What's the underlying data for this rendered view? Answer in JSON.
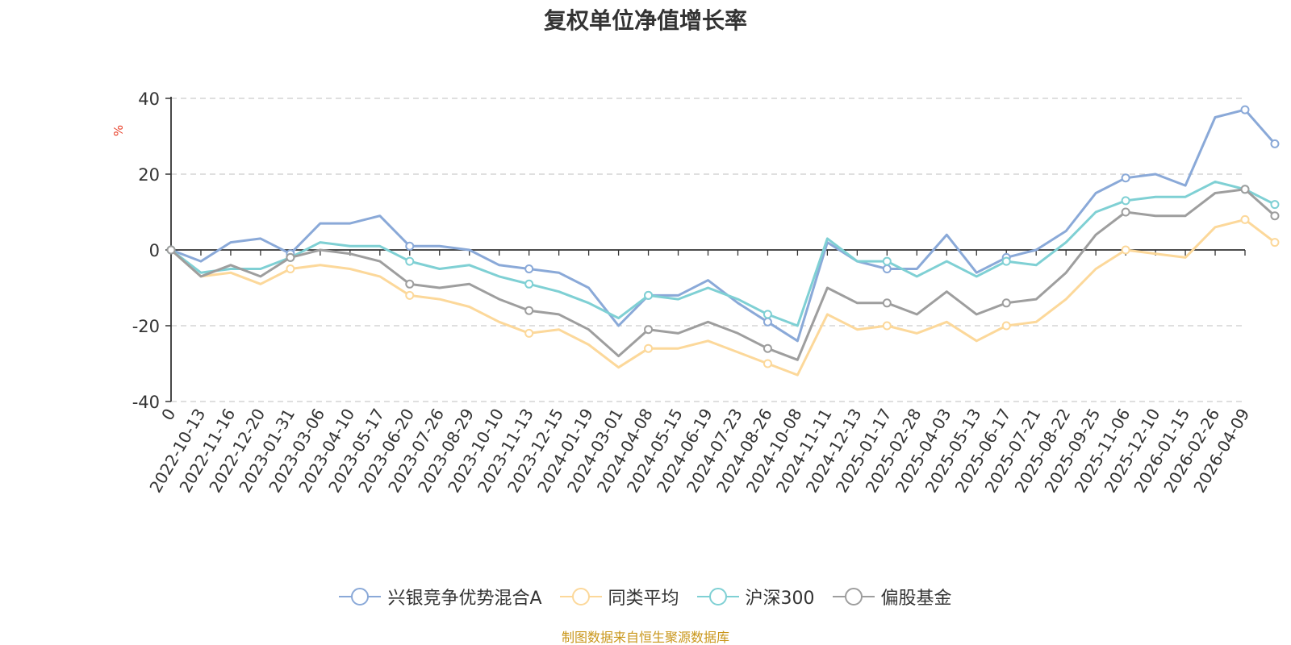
{
  "chart_data": {
    "type": "line",
    "title": "复权单位净值增长率",
    "ylabel": "%",
    "ylim": [
      -40,
      40
    ],
    "yticks": [
      -40,
      -20,
      0,
      20,
      40
    ],
    "grid": true,
    "legend_position": "bottom",
    "x_tick_labels": [
      "0",
      "2022-10-13",
      "2022-11-16",
      "2022-12-20",
      "2023-01-31",
      "2023-03-06",
      "2023-04-10",
      "2023-05-17",
      "2023-06-20",
      "2023-07-26",
      "2023-08-29",
      "2023-10-10",
      "2023-11-13",
      "2023-12-15",
      "2024-01-19",
      "2024-03-01",
      "2024-04-08",
      "2024-05-15",
      "2024-06-19",
      "2024-07-23",
      "2024-08-26",
      "2024-10-08",
      "2024-11-11",
      "2024-12-13",
      "2025-01-17",
      "2025-02-28",
      "2025-04-03",
      "2025-05-13",
      "2025-06-17",
      "2025-07-21",
      "2025-08-22",
      "2025-09-25",
      "2025-11-06",
      "2025-12-10",
      "2026-01-15",
      "2026-02-26",
      "2026-04-09"
    ],
    "series": [
      {
        "name": "兴银竞争优势混合A",
        "color": "#8aa9d8",
        "values": [
          0,
          -3,
          2,
          3,
          -1,
          7,
          7,
          9,
          1,
          1,
          0,
          -4,
          -5,
          -6,
          -10,
          -20,
          -12,
          -12,
          -8,
          -14,
          -19,
          -24,
          2,
          -3,
          -5,
          -5,
          4,
          -6,
          -2,
          0,
          5,
          15,
          19,
          20,
          17,
          35,
          37,
          28
        ]
      },
      {
        "name": "同类平均",
        "color": "#fcd89a",
        "values": [
          0,
          -7,
          -6,
          -9,
          -5,
          -4,
          -5,
          -7,
          -12,
          -13,
          -15,
          -19,
          -22,
          -21,
          -25,
          -31,
          -26,
          -26,
          -24,
          -27,
          -30,
          -33,
          -17,
          -21,
          -20,
          -22,
          -19,
          -24,
          -20,
          -19,
          -13,
          -5,
          0,
          -1,
          -2,
          6,
          8,
          2
        ]
      },
      {
        "name": "沪深300",
        "color": "#7fd0d4",
        "values": [
          0,
          -6,
          -5,
          -5,
          -2,
          2,
          1,
          1,
          -3,
          -5,
          -4,
          -7,
          -9,
          -11,
          -14,
          -18,
          -12,
          -13,
          -10,
          -13,
          -17,
          -20,
          3,
          -3,
          -3,
          -7,
          -3,
          -7,
          -3,
          -4,
          2,
          10,
          13,
          14,
          14,
          18,
          16,
          12
        ]
      },
      {
        "name": "偏股基金",
        "color": "#9e9e9e",
        "values": [
          0,
          -7,
          -4,
          -7,
          -2,
          0,
          -1,
          -3,
          -9,
          -10,
          -9,
          -13,
          -16,
          -17,
          -21,
          -28,
          -21,
          -22,
          -19,
          -22,
          -26,
          -29,
          -10,
          -14,
          -14,
          -17,
          -11,
          -17,
          -14,
          -13,
          -6,
          4,
          10,
          9,
          9,
          15,
          16,
          9
        ]
      }
    ]
  },
  "source_text": "制图数据来自恒生聚源数据库"
}
